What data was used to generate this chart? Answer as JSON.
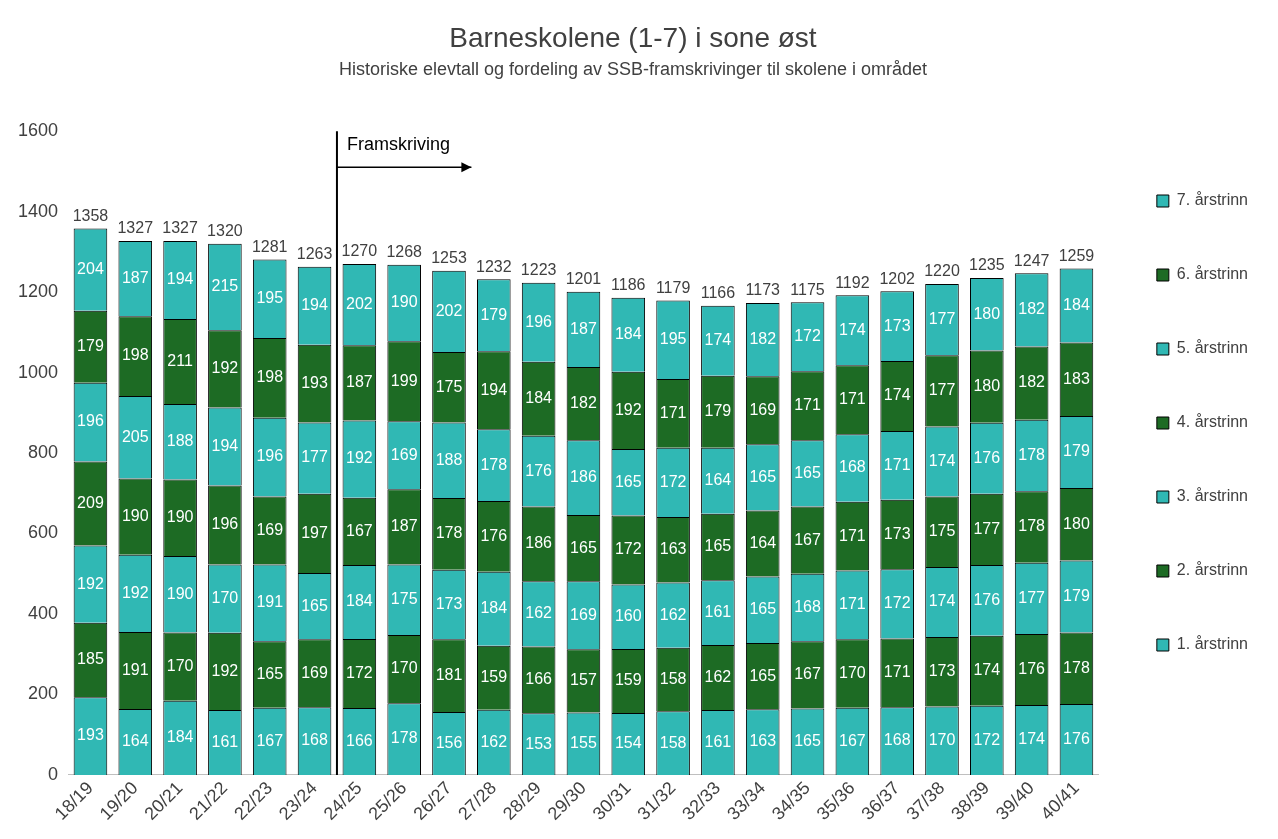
{
  "chart_data": {
    "type": "bar",
    "title": "Barneskolene (1-7) i sone øst",
    "subtitle": "Historiske elevtall og fordeling av SSB-framskrivinger til skolene i området",
    "categories": [
      "18/19",
      "19/20",
      "20/21",
      "21/22",
      "22/23",
      "23/24",
      "24/25",
      "25/26",
      "26/27",
      "27/28",
      "28/29",
      "29/30",
      "30/31",
      "31/32",
      "32/33",
      "33/34",
      "34/35",
      "35/36",
      "36/37",
      "37/38",
      "38/39",
      "39/40",
      "40/41"
    ],
    "stacked": true,
    "ylim": [
      0,
      1600
    ],
    "yticks": [
      0,
      200,
      400,
      600,
      800,
      1000,
      1200,
      1400,
      1600
    ],
    "grid": false,
    "legend": "right",
    "data_labels": true,
    "series": [
      {
        "name": "1. årstrinn",
        "color": "#30b8b4",
        "values": [
          193,
          164,
          184,
          161,
          167,
          168,
          166,
          178,
          156,
          162,
          153,
          155,
          154,
          158,
          161,
          163,
          165,
          167,
          168,
          170,
          172,
          174,
          176
        ]
      },
      {
        "name": "2. årstrinn",
        "color": "#1d6b24",
        "values": [
          185,
          191,
          170,
          192,
          165,
          169,
          172,
          170,
          181,
          159,
          166,
          157,
          159,
          158,
          162,
          165,
          167,
          170,
          171,
          173,
          174,
          176,
          178
        ]
      },
      {
        "name": "3. årstrinn",
        "color": "#30b8b4",
        "values": [
          192,
          192,
          190,
          170,
          191,
          165,
          184,
          175,
          173,
          184,
          162,
          169,
          160,
          162,
          161,
          165,
          168,
          171,
          172,
          174,
          176,
          177,
          179
        ]
      },
      {
        "name": "4. årstrinn",
        "color": "#1d6b24",
        "values": [
          209,
          190,
          190,
          196,
          169,
          197,
          167,
          187,
          178,
          176,
          186,
          165,
          172,
          163,
          165,
          164,
          167,
          171,
          173,
          175,
          177,
          178,
          180
        ]
      },
      {
        "name": "5. årstrinn",
        "color": "#30b8b4",
        "values": [
          196,
          205,
          188,
          194,
          196,
          177,
          192,
          169,
          188,
          178,
          176,
          186,
          165,
          172,
          164,
          165,
          165,
          168,
          171,
          174,
          176,
          178,
          179
        ]
      },
      {
        "name": "6. årstrinn",
        "color": "#1d6b24",
        "values": [
          179,
          198,
          211,
          192,
          198,
          193,
          187,
          199,
          175,
          194,
          184,
          182,
          192,
          171,
          179,
          169,
          171,
          171,
          174,
          177,
          180,
          182,
          183
        ]
      },
      {
        "name": "7. årstrinn",
        "color": "#30b8b4",
        "values": [
          204,
          187,
          194,
          215,
          195,
          194,
          202,
          190,
          202,
          179,
          196,
          187,
          184,
          195,
          174,
          182,
          172,
          174,
          173,
          177,
          180,
          182,
          184
        ]
      }
    ],
    "totals": [
      "1358",
      "1327",
      "1327",
      "1320",
      "1281",
      "1263",
      "1270",
      "1268",
      "1253",
      "1232",
      "1223",
      "1201",
      "1186",
      "1179",
      "1166",
      "1173",
      "1175",
      "1192",
      "1202",
      "1220",
      "1235",
      "1247",
      "1259"
    ],
    "ref_lines": [
      {
        "axis": "x",
        "value": "24/25",
        "label": "Framskriving",
        "color": "#000000"
      }
    ]
  }
}
